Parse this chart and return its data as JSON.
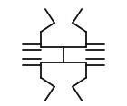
{
  "bg_color": "#ffffff",
  "line_color": "#111111",
  "lw": 1.3,
  "figsize": [
    1.4,
    1.17
  ],
  "dpi": 100
}
